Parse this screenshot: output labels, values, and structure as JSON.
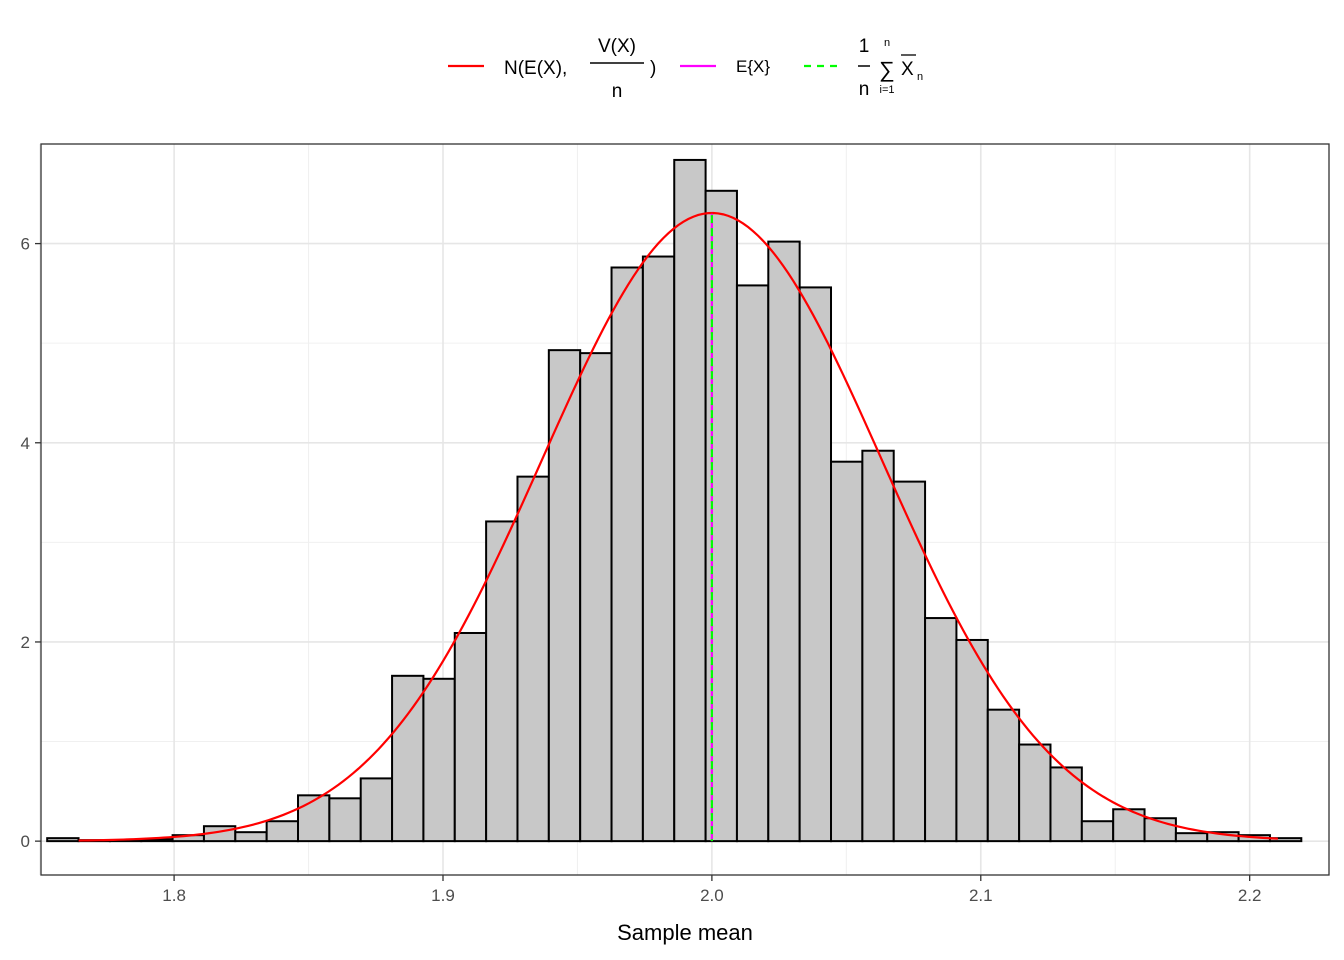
{
  "chart_data": {
    "type": "bar",
    "xlabel": "Sample mean",
    "ylabel": "",
    "xlim": [
      1.7505,
      2.2295
    ],
    "ylim": [
      -0.34,
      7.0
    ],
    "x_ticks": [
      "1.8",
      "1.9",
      "2.0",
      "2.1",
      "2.2"
    ],
    "x_tick_values": [
      1.8,
      1.9,
      2.0,
      2.1,
      2.2
    ],
    "y_ticks": [
      "0",
      "2",
      "4",
      "6"
    ],
    "y_tick_values": [
      0,
      2,
      4,
      6
    ],
    "grid": true,
    "legend_position": "top",
    "bin_width": 0.01166,
    "histogram": {
      "bin_left": [
        1.7528,
        1.76446,
        1.77612,
        1.78778,
        1.79944,
        1.8111,
        1.82276,
        1.83442,
        1.84608,
        1.85774,
        1.8694,
        1.88106,
        1.89272,
        1.90438,
        1.91604,
        1.9277,
        1.93936,
        1.95102,
        1.96268,
        1.97434,
        1.986,
        1.99766,
        2.00932,
        2.02098,
        2.03264,
        2.0443,
        2.05596,
        2.06762,
        2.07928,
        2.09094,
        2.1026,
        2.11426,
        2.12592,
        2.13758,
        2.14924,
        2.1609,
        2.17256,
        2.18422,
        2.19588,
        2.20754
      ],
      "density": [
        0.03,
        0.01,
        0.01,
        0.02,
        0.06,
        0.15,
        0.09,
        0.2,
        0.46,
        0.43,
        0.63,
        1.66,
        1.63,
        2.09,
        3.21,
        3.66,
        4.93,
        4.9,
        5.76,
        5.87,
        6.84,
        6.53,
        5.58,
        6.02,
        5.56,
        3.81,
        3.92,
        3.61,
        2.24,
        2.02,
        1.32,
        0.97,
        0.74,
        0.2,
        0.32,
        0.23,
        0.08,
        0.09,
        0.06,
        0.03
      ],
      "fill": "#c8c8c8",
      "stroke": "#000000"
    },
    "series": [
      {
        "name": "N(E(X), V(X)/n)",
        "type": "line",
        "color": "#ff0000",
        "mean": 2.0,
        "sd": 0.06325,
        "x_range": [
          1.7645,
          2.2105
        ]
      },
      {
        "name": "E{X}",
        "type": "vline",
        "color": "#ff00ff",
        "x": 2.0,
        "y_top": 6.3,
        "style": "dashed"
      },
      {
        "name": "1/n Σ X̄n",
        "type": "vline",
        "color": "#00ff00",
        "x": 2.0,
        "y_top": 6.3,
        "style": "dashed"
      }
    ],
    "legend": {
      "n_label": "N(E(X),",
      "frac_num": "V(X)",
      "frac_den": "n",
      "close_paren": ")",
      "ex_label": "E{X}",
      "mean_one": "1",
      "mean_n": "n",
      "sum_top": "n",
      "sum_sign": "∑",
      "sum_bottom": "i=1",
      "x_bar": "X",
      "x_sub": "n"
    }
  }
}
